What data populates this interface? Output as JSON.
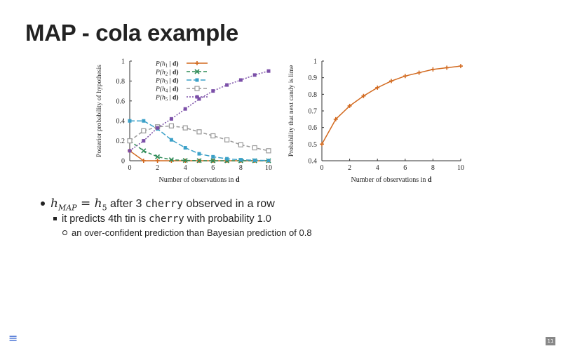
{
  "slide": {
    "title": "MAP - cola example",
    "menu_icon": "hamburger-menu-icon",
    "menu_glyph": "≡",
    "page_number": "11"
  },
  "bullets": {
    "b1": {
      "math_h": "h",
      "math_sub": "MAP",
      "math_eq": " = ",
      "math_h5": "h",
      "math_sub5": "5",
      "text_a": " after 3 ",
      "code": "cherry",
      "text_b": " observed in a row"
    },
    "b2": {
      "text_a": "it predicts 4th tin is ",
      "code": "cherry",
      "text_b": " with probability 1.0"
    },
    "b3": {
      "text": "an over-confident prediction than Bayesian prediction of 0.8"
    }
  },
  "chart_data": [
    {
      "type": "line",
      "ylabel": "Posterior probability of hypothesis",
      "xlabel_text": "Number of observations in ",
      "xlabel_bold": "d",
      "xlim": [
        0,
        10
      ],
      "ylim": [
        0,
        1
      ],
      "xticks": [
        "0",
        "2",
        "4",
        "6",
        "8",
        "10"
      ],
      "yticks": [
        "0",
        "0.2",
        "0.4",
        "0.6",
        "0.8",
        "1"
      ],
      "legend_position": "top-left",
      "x": [
        0,
        1,
        2,
        3,
        4,
        5,
        6,
        7,
        8,
        9,
        10
      ],
      "series": [
        {
          "name": "P(h1 | d)",
          "label_p": "P(h",
          "label_sub": "1",
          "label_end": " | d)",
          "color": "#d2691e",
          "marker": "plus",
          "dash": "",
          "values": [
            0.1,
            0,
            0,
            0,
            0,
            0,
            0,
            0,
            0,
            0,
            0
          ]
        },
        {
          "name": "P(h2 | d)",
          "label_p": "P(h",
          "label_sub": "2",
          "label_end": " | d)",
          "color": "#2e8b57",
          "marker": "x",
          "dash": "5,3",
          "values": [
            0.2,
            0.1,
            0.04,
            0.01,
            0.003,
            0.001,
            0,
            0,
            0,
            0,
            0
          ]
        },
        {
          "name": "P(h3 | d)",
          "label_p": "P(h",
          "label_sub": "3",
          "label_end": " | d)",
          "color": "#3aa0c8",
          "marker": "square",
          "dash": "7,3",
          "values": [
            0.4,
            0.4,
            0.32,
            0.21,
            0.13,
            0.07,
            0.04,
            0.02,
            0.01,
            0.005,
            0.002
          ]
        },
        {
          "name": "P(h4 | d)",
          "label_p": "P(h",
          "label_sub": "4",
          "label_end": " | d)",
          "color": "#999999",
          "marker": "open-square",
          "dash": "5,3",
          "values": [
            0.2,
            0.3,
            0.34,
            0.35,
            0.33,
            0.29,
            0.25,
            0.21,
            0.16,
            0.13,
            0.1
          ]
        },
        {
          "name": "P(h5 | d)",
          "label_p": "P(h",
          "label_sub": "5",
          "label_end": " | d)",
          "color": "#7b4fa8",
          "marker": "square",
          "dash": "2,2",
          "values": [
            0.1,
            0.2,
            0.33,
            0.42,
            0.52,
            0.62,
            0.7,
            0.76,
            0.81,
            0.86,
            0.9
          ]
        }
      ]
    },
    {
      "type": "line",
      "ylabel": "Probability that next candy is lime",
      "xlabel_text": "Number of observations in ",
      "xlabel_bold": "d",
      "xlim": [
        0,
        10
      ],
      "ylim": [
        0.4,
        1
      ],
      "xticks": [
        "0",
        "2",
        "4",
        "6",
        "8",
        "10"
      ],
      "yticks": [
        "0.4",
        "0.5",
        "0.6",
        "0.7",
        "0.8",
        "0.9",
        "1"
      ],
      "x": [
        0,
        1,
        2,
        3,
        4,
        5,
        6,
        7,
        8,
        9,
        10
      ],
      "series": [
        {
          "color": "#d2691e",
          "marker": "plus",
          "dash": "",
          "values": [
            0.5,
            0.65,
            0.73,
            0.79,
            0.84,
            0.88,
            0.91,
            0.93,
            0.95,
            0.96,
            0.97
          ]
        }
      ]
    }
  ]
}
